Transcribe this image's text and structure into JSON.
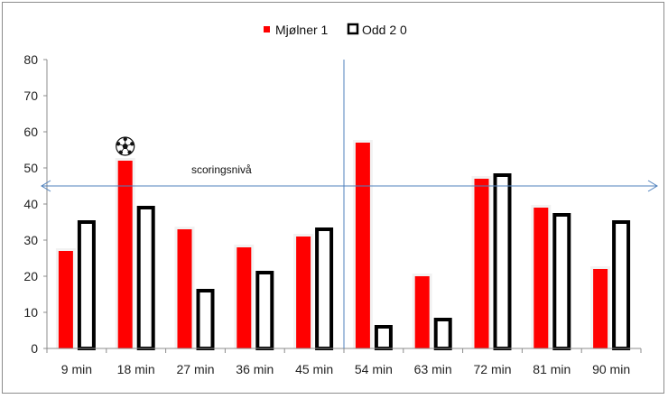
{
  "chart_data": {
    "type": "bar",
    "categories": [
      "9 min",
      "18 min",
      "27 min",
      "36 min",
      "45 min",
      "54 min",
      "63 min",
      "72 min",
      "81 min",
      "90 min"
    ],
    "series": [
      {
        "name": "Mjølner 1",
        "color": "#ff0000",
        "values": [
          27,
          52,
          33,
          28,
          31,
          57,
          20,
          47,
          39,
          22
        ]
      },
      {
        "name": "Odd 2 0",
        "color": "#000000",
        "fill": "#ffffff",
        "values": [
          35,
          39,
          16,
          21,
          33,
          6,
          8,
          48,
          37,
          35
        ]
      }
    ],
    "ylim": [
      0,
      80
    ],
    "yticks": [
      0,
      10,
      20,
      30,
      40,
      50,
      60,
      70,
      80
    ],
    "legend": "top-center",
    "grid": false,
    "annotations": {
      "level_label": "scoringsnivå",
      "level_value": 45,
      "halftime_divider_after": "45 min",
      "ball_icon_at": "18 min",
      "ball_icon": "soccer-ball-icon",
      "line_color": "#4f81bd"
    }
  }
}
